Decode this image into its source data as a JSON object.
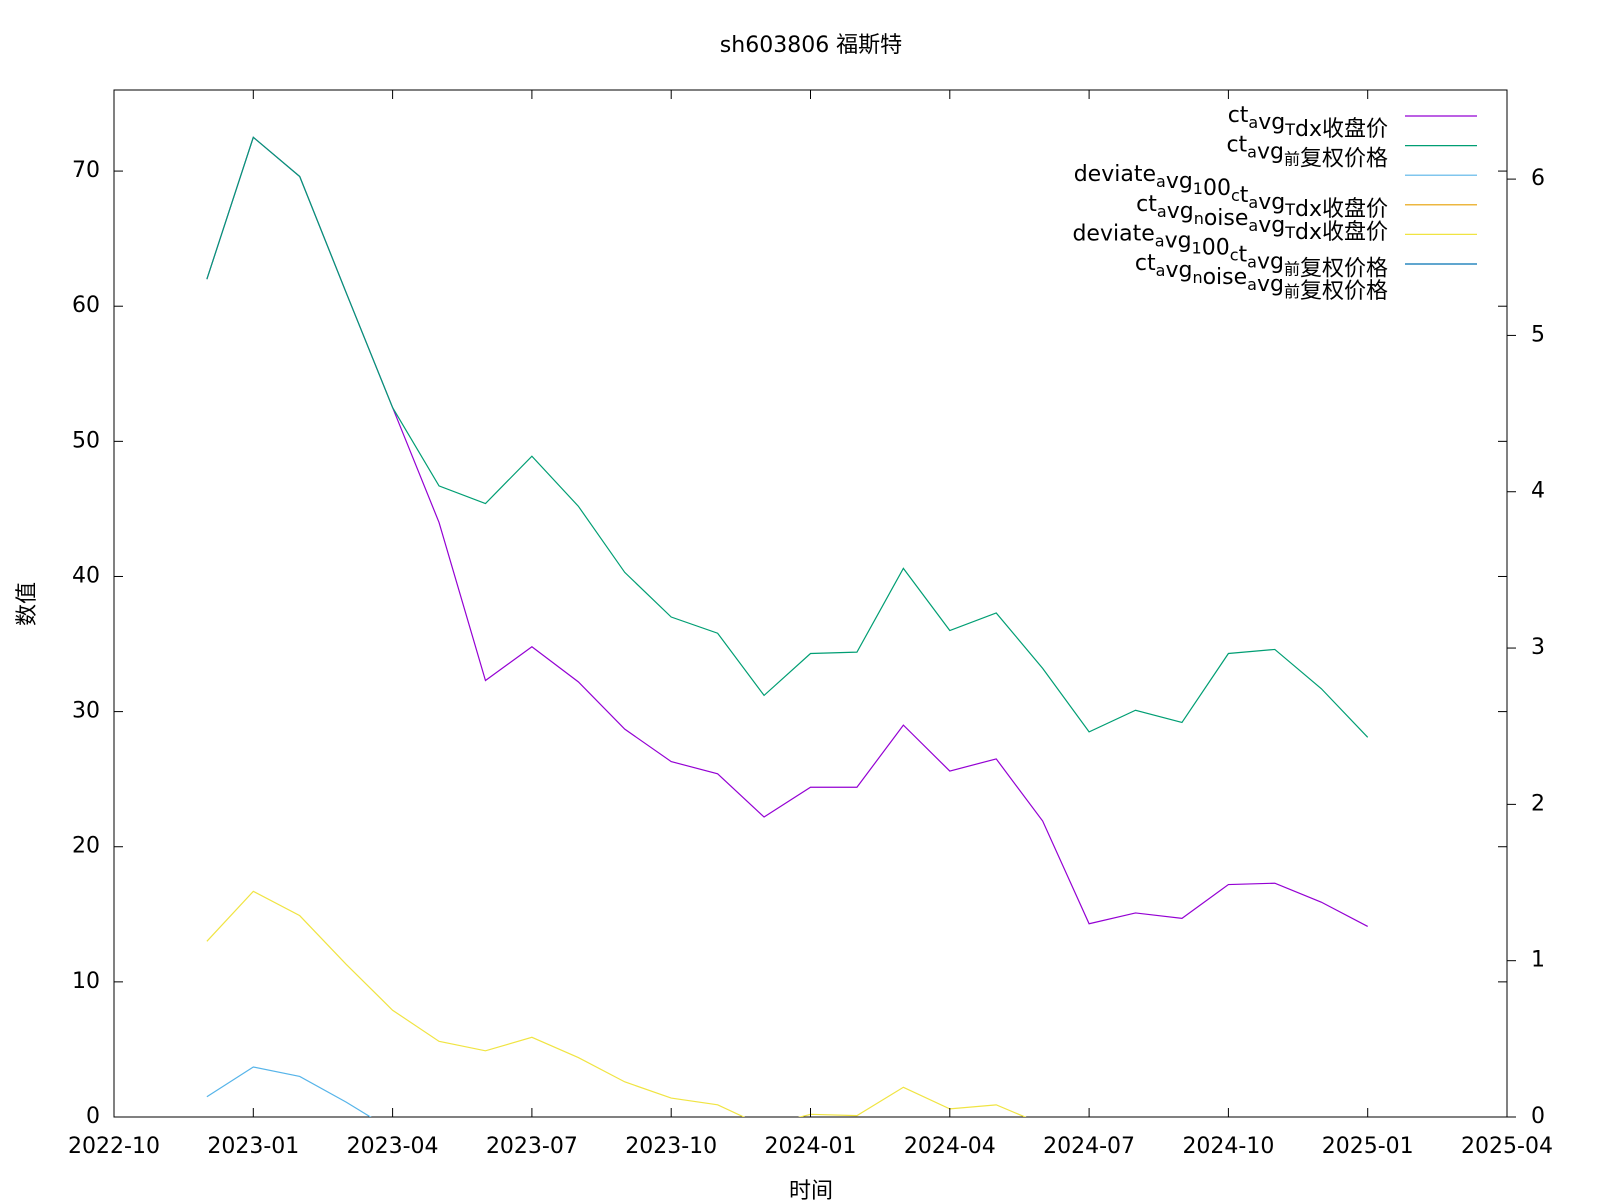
{
  "chart_data": {
    "type": "line",
    "title": "sh603806 福斯特",
    "x_label": "时间",
    "y_label": "数值",
    "x": [
      "2022-12",
      "2023-01",
      "2023-02",
      "2023-03",
      "2023-04",
      "2023-05",
      "2023-06",
      "2023-07",
      "2023-08",
      "2023-09",
      "2023-10",
      "2023-11",
      "2023-12",
      "2024-01",
      "2024-02",
      "2024-03",
      "2024-04",
      "2024-05",
      "2024-06",
      "2024-07",
      "2024-08",
      "2024-09",
      "2024-10",
      "2024-11",
      "2024-12",
      "2025-01"
    ],
    "xlim": [
      "2022-10",
      "2025-04"
    ],
    "xticks": [
      "2022-10",
      "2023-01",
      "2023-04",
      "2023-07",
      "2023-10",
      "2024-01",
      "2024-04",
      "2024-07",
      "2024-10",
      "2025-01",
      "2025-04"
    ],
    "ylim": [
      0,
      76
    ],
    "yticks": [
      0,
      10,
      20,
      30,
      40,
      50,
      60,
      70
    ],
    "y2lim": [
      0,
      6.57
    ],
    "y2ticks": [
      0,
      1,
      2,
      3,
      4,
      5,
      6
    ],
    "legend": "top-right",
    "series": [
      {
        "name": "ct_avg_Tdx收盘价",
        "color": "#9400d3",
        "values": [
          62,
          72.5,
          69.6,
          61,
          52.5,
          44,
          32.3,
          34.8,
          32.2,
          28.7,
          26.3,
          25.4,
          22.2,
          24.4,
          24.4,
          29,
          25.6,
          26.5,
          21.9,
          14.3,
          15.1,
          14.7,
          17.2,
          17.3,
          15.9,
          14.1
        ]
      },
      {
        "name": "ct_avg_前复权价格",
        "color": "#009e73",
        "values": [
          62,
          72.5,
          69.6,
          61,
          52.5,
          46.7,
          45.4,
          48.9,
          45.2,
          40.3,
          37.0,
          35.8,
          31.2,
          34.3,
          34.4,
          40.6,
          36.0,
          37.3,
          33.2,
          28.5,
          30.1,
          29.2,
          34.3,
          34.6,
          31.7,
          28.1
        ]
      },
      {
        "name": "deviate_avg_100_ct_avg_Tdx收盘价",
        "color": "#56b4e9",
        "values": [
          1.5,
          3.7,
          3.0,
          1.1,
          -1.0,
          null,
          null,
          null,
          null,
          null,
          null,
          null,
          null,
          null,
          null,
          null,
          null,
          null,
          null,
          null,
          null,
          null,
          null,
          null,
          null,
          null
        ]
      },
      {
        "name": "ct_avg_noise_avg_Tdx收盘价",
        "color": "#e69f00",
        "values": [
          null,
          null,
          null,
          null,
          null,
          null,
          null,
          null,
          null,
          null,
          null,
          null,
          null,
          null,
          null,
          null,
          null,
          null,
          null,
          null,
          null,
          null,
          null,
          null,
          null,
          null
        ]
      },
      {
        "name": "deviate_avg_100_ct_avg_前复权价格",
        "color": "#f0e442",
        "values": [
          13.0,
          16.7,
          14.9,
          11.3,
          7.9,
          5.6,
          4.9,
          5.9,
          4.4,
          2.6,
          1.4,
          0.9,
          -0.7,
          0.2,
          0.1,
          2.2,
          0.6,
          0.9,
          -0.55,
          null,
          null,
          null,
          null,
          null,
          null,
          null
        ]
      },
      {
        "name": "ct_avg_noise_avg_前复权价格",
        "color": "#0072b2",
        "values": [
          null,
          null,
          null,
          null,
          null,
          null,
          null,
          null,
          null,
          null,
          null,
          null,
          null,
          null,
          null,
          null,
          null,
          null,
          null,
          null,
          null,
          null,
          null,
          null,
          null,
          null
        ]
      }
    ]
  }
}
